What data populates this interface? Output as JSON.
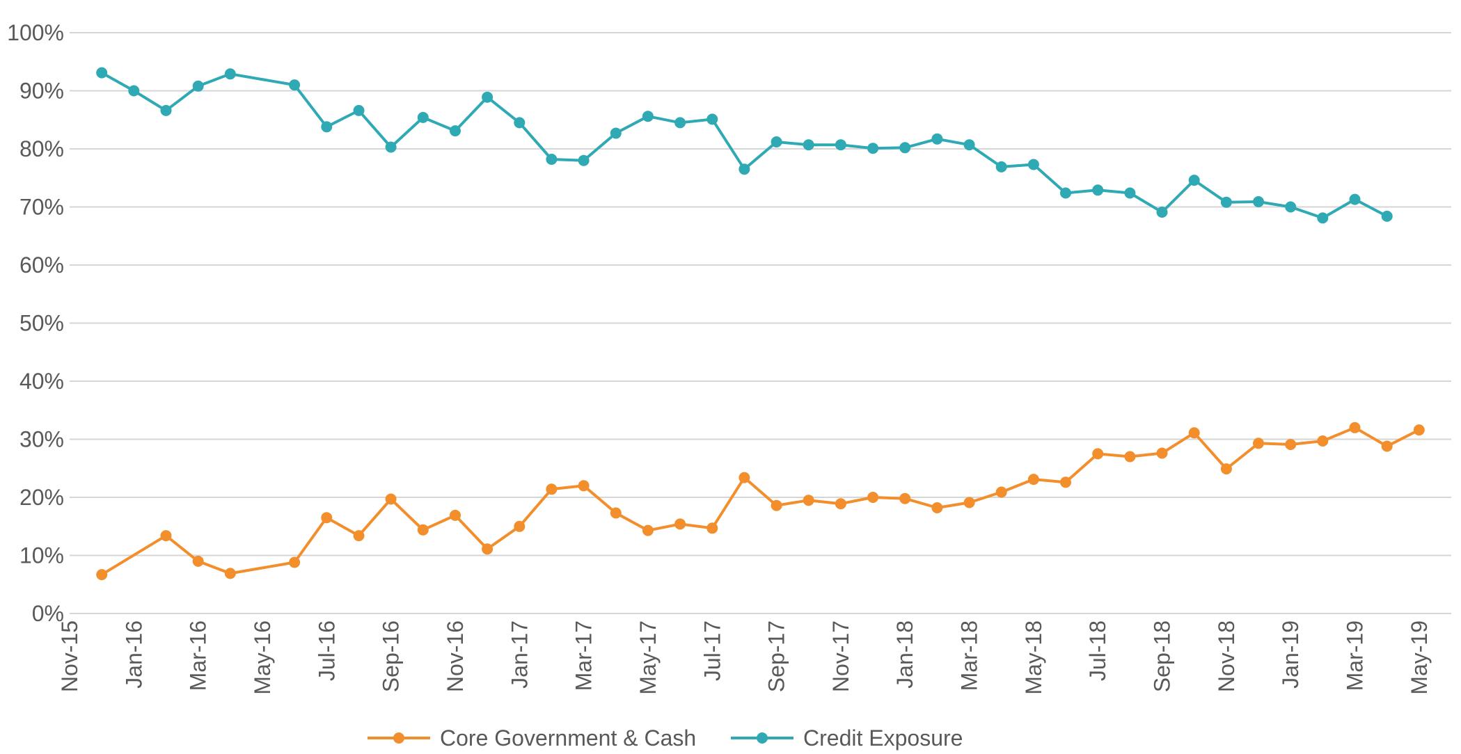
{
  "chart_data": {
    "type": "line",
    "title": "",
    "xlabel": "",
    "ylabel": "",
    "ylim": [
      0,
      100
    ],
    "yticks": [
      "0%",
      "10%",
      "20%",
      "30%",
      "40%",
      "50%",
      "60%",
      "70%",
      "80%",
      "90%",
      "100%"
    ],
    "xticks": [
      "Nov-15",
      "Jan-16",
      "Mar-16",
      "May-16",
      "Jul-16",
      "Sep-16",
      "Nov-16",
      "Jan-17",
      "Mar-17",
      "May-17",
      "Jul-17",
      "Sep-17",
      "Nov-17",
      "Jan-18",
      "Mar-18",
      "May-18",
      "Jul-18",
      "Sep-18",
      "Nov-18",
      "Jan-19",
      "Mar-19",
      "May-19"
    ],
    "grid": true,
    "legend_position": "bottom",
    "x": [
      "Dec-15",
      "Jan-16",
      "Feb-16",
      "Mar-16",
      "Apr-16",
      "Jun-16",
      "Jul-16",
      "Aug-16",
      "Sep-16",
      "Oct-16",
      "Nov-16",
      "Dec-16",
      "Jan-17",
      "Feb-17",
      "Mar-17",
      "Apr-17",
      "May-17",
      "Jun-17",
      "Jul-17",
      "Aug-17",
      "Sep-17",
      "Oct-17",
      "Nov-17",
      "Dec-17",
      "Jan-18",
      "Feb-18",
      "Mar-18",
      "Apr-18",
      "May-18",
      "Jun-18",
      "Jul-18",
      "Aug-18",
      "Sep-18",
      "Oct-18",
      "Nov-18",
      "Dec-18",
      "Jan-19",
      "Feb-19",
      "Mar-19",
      "Apr-19",
      "May-19"
    ],
    "series": [
      {
        "name": "Core Government & Cash",
        "color": "#f28e2b",
        "values": [
          6.7,
          null,
          13.4,
          9.0,
          6.9,
          8.8,
          16.5,
          13.4,
          19.7,
          14.4,
          16.9,
          11.1,
          15.0,
          21.4,
          22.0,
          17.3,
          14.3,
          15.4,
          14.7,
          23.4,
          18.6,
          19.5,
          18.9,
          20.0,
          19.8,
          18.2,
          19.1,
          20.9,
          23.1,
          22.6,
          27.5,
          27.0,
          27.6,
          31.1,
          24.9,
          29.3,
          29.1,
          29.7,
          32.0,
          28.8,
          31.6
        ]
      },
      {
        "name": "Credit Exposure",
        "color": "#2fa9b3",
        "values": [
          93.1,
          90.0,
          86.6,
          90.8,
          92.9,
          91.0,
          83.8,
          86.6,
          80.3,
          85.4,
          83.1,
          88.9,
          84.5,
          78.2,
          78.0,
          82.7,
          85.6,
          84.5,
          85.1,
          76.5,
          81.2,
          80.7,
          80.7,
          80.1,
          80.2,
          81.7,
          80.7,
          76.9,
          77.3,
          72.4,
          72.9,
          72.4,
          69.1,
          74.6,
          70.8,
          70.9,
          70.0,
          68.1,
          71.3,
          68.4,
          null
        ]
      }
    ]
  }
}
